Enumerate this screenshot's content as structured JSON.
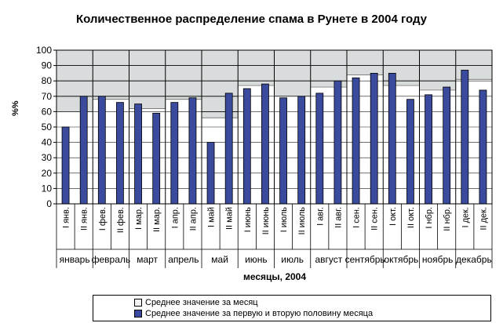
{
  "chart_data": {
    "type": "bar",
    "title": "Количественное распределение спама в Рунете в 2004 году",
    "ylabel": "%%",
    "xlabel": "месяцы, 2004",
    "ylim": [
      0,
      100
    ],
    "yticks": [
      0,
      10,
      20,
      30,
      40,
      50,
      60,
      70,
      80,
      90,
      100
    ],
    "half_month_labels": [
      "I янв.",
      "II янв.",
      "I фев.",
      "II фев.",
      "I мар.",
      "II мар.",
      "I апр.",
      "II апр.",
      "I май",
      "II май",
      "I июнь",
      "II июнь",
      "I июль",
      "II июль",
      "I авг.",
      "II авг.",
      "I сен.",
      "II сен.",
      "I окт.",
      "II окт.",
      "I нбр.",
      "II нбр.",
      "I дек.",
      "II дек."
    ],
    "months": [
      "январь",
      "февраль",
      "март",
      "апрель",
      "май",
      "июнь",
      "июль",
      "август",
      "сентябрь",
      "октябрь",
      "ноябрь",
      "декабрь"
    ],
    "series": [
      {
        "name": "Среднее значение за месяц",
        "type": "area",
        "color": "#ffffff",
        "values": [
          60,
          60,
          68,
          68,
          62,
          62,
          68,
          68,
          56,
          56,
          77,
          77,
          70,
          70,
          76,
          76,
          84,
          84,
          77,
          77,
          74,
          74,
          81,
          81
        ]
      },
      {
        "name": "Среднее значение за первую и вторую половину месяца",
        "type": "bar",
        "color": "#3a4a9c",
        "values": [
          50,
          70,
          70,
          66,
          65,
          59,
          66,
          69,
          40,
          72,
          75,
          78,
          69,
          70,
          72,
          80,
          82,
          85,
          85,
          68,
          71,
          76,
          87,
          74
        ]
      }
    ],
    "grid": true,
    "plot_background": "#d9dcdc",
    "legend_position": "bottom"
  }
}
